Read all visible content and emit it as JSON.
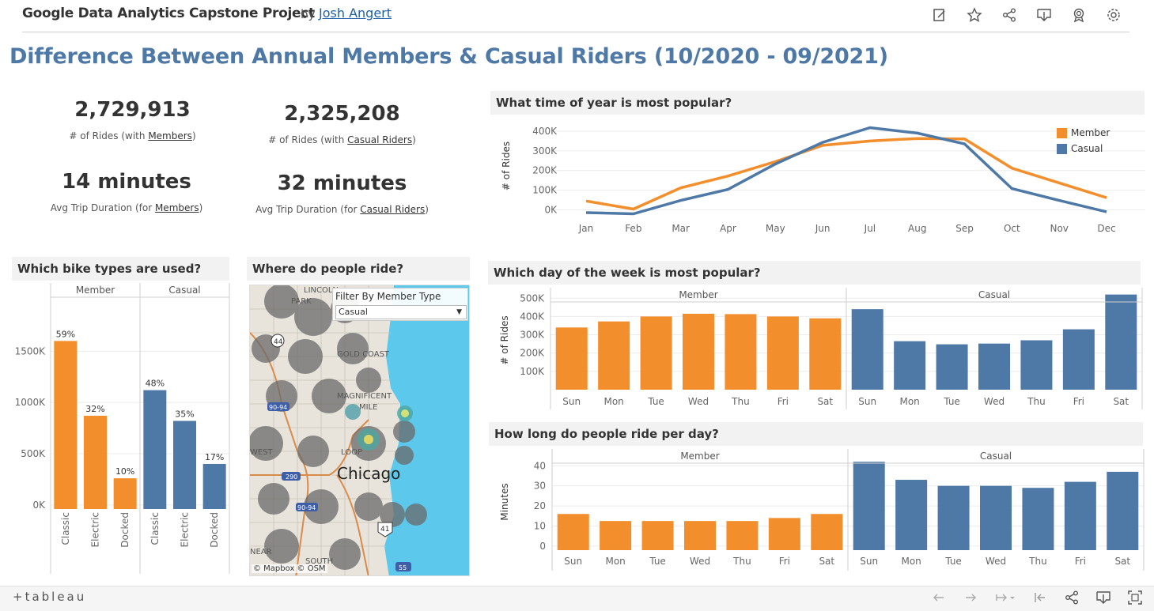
{
  "header": {
    "project_title": "Google Data Analytics Capstone Project",
    "by": "by",
    "author": "Josh Angert",
    "icons": [
      "edit-icon",
      "star-icon",
      "share-icon",
      "download-icon",
      "badge-icon",
      "settings-icon"
    ]
  },
  "main_title": "Difference Between Annual Members & Casual Riders (10/2020 - 09/2021)",
  "kpis": {
    "member_rides": "2,729,913",
    "member_rides_label_prefix": "# of Rides (with ",
    "member_rides_label_link": "Members",
    "member_rides_label_suffix": ")",
    "casual_rides": "2,325,208",
    "casual_rides_label_prefix": "# of Rides (with ",
    "casual_rides_label_link": "Casual Riders",
    "casual_rides_label_suffix": ")",
    "member_duration": "14 minutes",
    "member_duration_label_prefix": "Avg Trip Duration (for ",
    "member_duration_label_link": "Members",
    "member_duration_label_suffix": ")",
    "casual_duration": "32 minutes",
    "casual_duration_label_prefix": "Avg Trip Duration (for ",
    "casual_duration_label_link": "Casual Riders",
    "casual_duration_label_suffix": ")"
  },
  "sections": {
    "time_of_year": "What time of year is most popular?",
    "bike_types": "Which bike types are used?",
    "where": "Where do people ride?",
    "day_of_week": "Which day of the week is most popular?",
    "ride_length": "How long do people ride per day?"
  },
  "map": {
    "filter_label": "Filter By Member Type",
    "filter_value": "Casual",
    "credit": "© Mapbox  © OSM",
    "labels": [
      "LINCOLN PARK",
      "GOLD COAST",
      "MAGNIFICENT MILE",
      "LOOP",
      "Chicago",
      "WEST",
      "SOUTH LOOP",
      "NEAR"
    ],
    "highway_labels": [
      "44",
      "90-94",
      "290",
      "90-94",
      "41",
      "55"
    ]
  },
  "footer": {
    "logo": "+tableau"
  },
  "colors": {
    "member": "#f28e2b",
    "casual": "#4e79a7",
    "title": "#4e79a7"
  },
  "chart_data": [
    {
      "id": "time_of_year",
      "type": "line",
      "ylabel": "# of Rides",
      "x": [
        "Jan",
        "Feb",
        "Mar",
        "Apr",
        "May",
        "Jun",
        "Jul",
        "Aug",
        "Sep",
        "Oct",
        "Nov",
        "Dec"
      ],
      "yticks": [
        "0K",
        "100K",
        "200K",
        "300K",
        "400K"
      ],
      "ylim": [
        -30000,
        440000
      ],
      "legend": "top-right",
      "series": [
        {
          "name": "Member",
          "color": "#f28e2b",
          "values": [
            45000,
            4000,
            112000,
            172000,
            245000,
            328000,
            350000,
            363000,
            361000,
            212000,
            137000,
            62000
          ]
        },
        {
          "name": "Casual",
          "color": "#4e79a7",
          "values": [
            -14000,
            -20000,
            48000,
            104000,
            233000,
            343000,
            418000,
            390000,
            335000,
            108000,
            48000,
            -10000
          ]
        }
      ]
    },
    {
      "id": "bike_types",
      "type": "bar",
      "facets": [
        "Member",
        "Casual"
      ],
      "categories": [
        "Classic",
        "Electric",
        "Docked"
      ],
      "yticks": [
        "0K",
        "500K",
        "1000K",
        "1500K"
      ],
      "ylim": [
        -40000,
        1950000
      ],
      "series": [
        {
          "name": "Member",
          "color": "#f28e2b",
          "values": [
            1600000,
            870000,
            260000
          ],
          "labels": [
            "59%",
            "32%",
            "10%"
          ]
        },
        {
          "name": "Casual",
          "color": "#4e79a7",
          "values": [
            1120000,
            820000,
            400000
          ],
          "labels": [
            "48%",
            "35%",
            "17%"
          ]
        }
      ]
    },
    {
      "id": "day_of_week",
      "type": "bar",
      "ylabel": "# of Rides",
      "facets": [
        "Member",
        "Casual"
      ],
      "categories": [
        "Sun",
        "Mon",
        "Tue",
        "Wed",
        "Thu",
        "Fri",
        "Sat"
      ],
      "yticks": [
        "100K",
        "200K",
        "300K",
        "400K",
        "500K"
      ],
      "ylim": [
        0,
        540000
      ],
      "series": [
        {
          "name": "Member",
          "color": "#f28e2b",
          "values": [
            340000,
            373000,
            400000,
            415000,
            413000,
            400000,
            390000
          ]
        },
        {
          "name": "Casual",
          "color": "#4e79a7",
          "values": [
            440000,
            265000,
            248000,
            252000,
            270000,
            330000,
            520000
          ]
        }
      ]
    },
    {
      "id": "ride_length",
      "type": "bar",
      "ylabel": "Minutes",
      "facets": [
        "Member",
        "Casual"
      ],
      "categories": [
        "Sun",
        "Mon",
        "Tue",
        "Wed",
        "Thu",
        "Fri",
        "Sat"
      ],
      "yticks": [
        "0",
        "10",
        "20",
        "30",
        "40"
      ],
      "ylim": [
        -2,
        46
      ],
      "series": [
        {
          "name": "Member",
          "color": "#f28e2b",
          "values": [
            16,
            12.5,
            12.5,
            12.5,
            12.5,
            14,
            16
          ]
        },
        {
          "name": "Casual",
          "color": "#4e79a7",
          "values": [
            42,
            33,
            30,
            30,
            29,
            32,
            37
          ]
        }
      ]
    }
  ]
}
